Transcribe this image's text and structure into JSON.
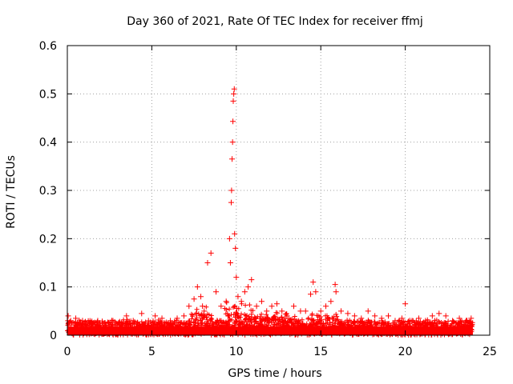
{
  "chart_data": {
    "type": "scatter",
    "title": "Day 360 of 2021, Rate Of TEC Index for receiver ffmj",
    "xlabel": "GPS time / hours",
    "ylabel": "ROTI / TECUs",
    "xlim": [
      0,
      25
    ],
    "ylim": [
      0,
      0.6
    ],
    "xticks": [
      0,
      5,
      10,
      15,
      20,
      25
    ],
    "xtick_labels": [
      "0",
      "5",
      "10",
      "15",
      "20",
      "25"
    ],
    "yticks": [
      0,
      0.1,
      0.2,
      0.3,
      0.4,
      0.5,
      0.6
    ],
    "ytick_labels": [
      "0",
      "0.1",
      "0.2",
      "0.3",
      "0.4",
      "0.5",
      "0.6"
    ],
    "grid": true,
    "marker": "+",
    "series": [
      {
        "name": "ROTI",
        "color": "#ff0000",
        "x": [
          0.05,
          0.2,
          0.5,
          0.9,
          1.3,
          1.8,
          2.2,
          2.7,
          3.1,
          3.5,
          3.9,
          4.4,
          4.8,
          5.2,
          5.6,
          6.1,
          6.5,
          6.9,
          7.2,
          7.5,
          7.7,
          7.9,
          8.0,
          8.1,
          8.3,
          8.5,
          8.8,
          9.1,
          9.4,
          9.6,
          9.65,
          9.7,
          9.72,
          9.75,
          9.78,
          9.8,
          9.82,
          9.85,
          9.88,
          9.9,
          9.95,
          10.0,
          10.1,
          10.3,
          10.5,
          10.7,
          10.9,
          11.2,
          11.5,
          11.8,
          12.1,
          12.4,
          12.7,
          13.0,
          13.4,
          13.8,
          14.1,
          14.4,
          14.55,
          14.7,
          15.0,
          15.3,
          15.6,
          15.85,
          15.9,
          16.2,
          16.6,
          17.0,
          17.4,
          17.8,
          18.2,
          18.6,
          19.0,
          19.4,
          19.8,
          20.0,
          20.4,
          20.8,
          21.2,
          21.6,
          22.0,
          22.4,
          22.8,
          23.2,
          23.6,
          23.9
        ],
        "y": [
          0.04,
          0.03,
          0.035,
          0.03,
          0.025,
          0.03,
          0.025,
          0.03,
          0.028,
          0.04,
          0.03,
          0.045,
          0.03,
          0.04,
          0.035,
          0.03,
          0.035,
          0.04,
          0.06,
          0.075,
          0.1,
          0.08,
          0.06,
          0.05,
          0.15,
          0.17,
          0.09,
          0.06,
          0.07,
          0.2,
          0.15,
          0.275,
          0.3,
          0.365,
          0.4,
          0.443,
          0.485,
          0.5,
          0.51,
          0.21,
          0.18,
          0.12,
          0.08,
          0.07,
          0.09,
          0.1,
          0.115,
          0.06,
          0.07,
          0.05,
          0.06,
          0.065,
          0.05,
          0.04,
          0.06,
          0.05,
          0.05,
          0.085,
          0.11,
          0.09,
          0.05,
          0.06,
          0.07,
          0.105,
          0.09,
          0.05,
          0.045,
          0.04,
          0.035,
          0.05,
          0.04,
          0.035,
          0.04,
          0.03,
          0.035,
          0.065,
          0.03,
          0.035,
          0.03,
          0.04,
          0.045,
          0.04,
          0.03,
          0.035,
          0.03,
          0.035
        ]
      }
    ]
  }
}
